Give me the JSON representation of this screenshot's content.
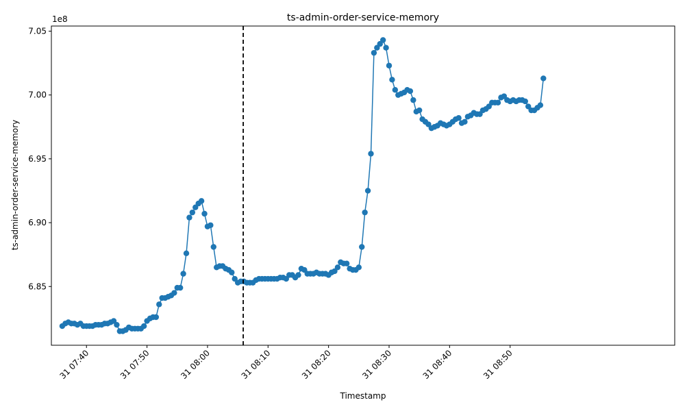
{
  "chart_data": {
    "type": "line",
    "title": "ts-admin-order-service-memory",
    "xlabel": "Timestamp",
    "ylabel": "ts-admin-order-service-memory",
    "y_offset_label": "1e8",
    "y_multiplier": 100000000,
    "ylim": [
      680.4,
      705.4
    ],
    "xlim_minutes": [
      -5.8,
      97.2
    ],
    "x_reference": "31 07:40",
    "x_ticks": [
      {
        "minute": 0,
        "label": "31 07:40"
      },
      {
        "minute": 10,
        "label": "31 07:50"
      },
      {
        "minute": 20,
        "label": "31 08:00"
      },
      {
        "minute": 30,
        "label": "31 08:10"
      },
      {
        "minute": 40,
        "label": "31 08:20"
      },
      {
        "minute": 50,
        "label": "31 08:30"
      },
      {
        "minute": 60,
        "label": "31 08:40"
      },
      {
        "minute": 70,
        "label": "31 08:50"
      }
    ],
    "y_ticks": [
      {
        "value": 685.0,
        "label": "6.85"
      },
      {
        "value": 690.0,
        "label": "6.90"
      },
      {
        "value": 695.0,
        "label": "6.95"
      },
      {
        "value": 700.0,
        "label": "7.00"
      },
      {
        "value": 705.0,
        "label": "7.05"
      }
    ],
    "vline_minute": 25.9,
    "grid": false,
    "line_color": "#1f77b4",
    "vline_color": "#000000",
    "x_start_minute": -4,
    "x_step_minute": 0.5,
    "values": [
      681.9,
      682.1,
      682.2,
      682.1,
      682.1,
      682.0,
      682.1,
      681.9,
      681.9,
      681.9,
      681.9,
      682.0,
      682.0,
      682.0,
      682.1,
      682.1,
      682.2,
      682.3,
      682.0,
      681.5,
      681.5,
      681.6,
      681.8,
      681.7,
      681.7,
      681.7,
      681.7,
      681.9,
      682.3,
      682.5,
      682.6,
      682.6,
      683.6,
      684.1,
      684.1,
      684.2,
      684.3,
      684.5,
      684.9,
      684.9,
      686.0,
      687.6,
      690.4,
      690.8,
      691.2,
      691.5,
      691.7,
      690.7,
      689.7,
      689.8,
      688.1,
      686.5,
      686.6,
      686.6,
      686.4,
      686.3,
      686.1,
      685.6,
      685.3,
      685.4,
      685.4,
      685.3,
      685.3,
      685.3,
      685.5,
      685.6,
      685.6,
      685.6,
      685.6,
      685.6,
      685.6,
      685.6,
      685.7,
      685.7,
      685.6,
      685.9,
      685.9,
      685.7,
      685.9,
      686.4,
      686.3,
      686.0,
      686.0,
      686.0,
      686.1,
      686.0,
      686.0,
      686.0,
      685.9,
      686.1,
      686.2,
      686.5,
      686.9,
      686.8,
      686.8,
      686.4,
      686.3,
      686.3,
      686.5,
      688.1,
      690.8,
      692.5,
      695.4,
      703.3,
      703.7,
      704.0,
      704.3,
      703.7,
      702.3,
      701.2,
      700.4,
      700.0,
      700.1,
      700.2,
      700.4,
      700.3,
      699.6,
      698.7,
      698.8,
      698.1,
      697.9,
      697.7,
      697.4,
      697.5,
      697.6,
      697.8,
      697.7,
      697.6,
      697.7,
      697.9,
      698.1,
      698.2,
      697.8,
      697.9,
      698.3,
      698.4,
      698.6,
      698.5,
      698.5,
      698.8,
      698.9,
      699.1,
      699.4,
      699.4,
      699.4,
      699.8,
      699.9,
      699.6,
      699.5,
      699.6,
      699.5,
      699.6,
      699.6,
      699.5,
      699.1,
      698.8,
      698.8,
      699.0,
      699.2,
      701.3
    ]
  }
}
